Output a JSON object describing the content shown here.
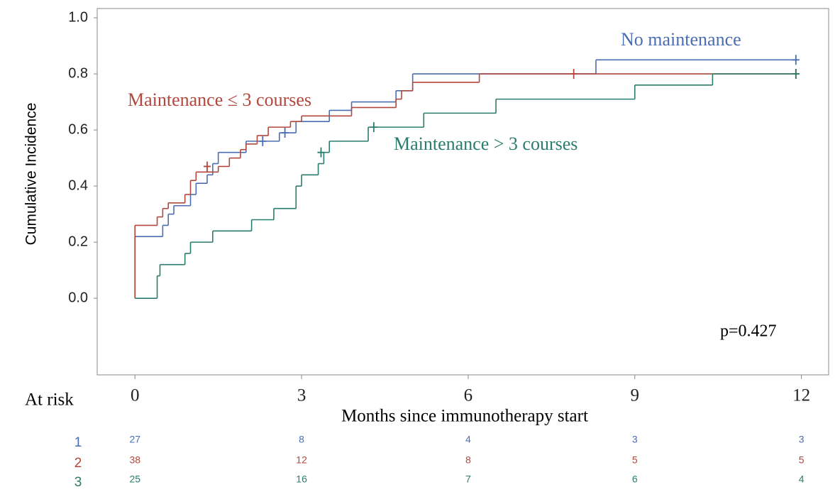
{
  "chart_data": {
    "type": "step",
    "y_label": "Cumulative Incidence",
    "x_label": "Months since immunotherapy start",
    "annotation": "p=0.427",
    "xlim": [
      -0.68,
      12.49
    ],
    "ylim": [
      -0.273,
      1.033
    ],
    "xticks": [
      0,
      3,
      6,
      9,
      12
    ],
    "yticks": [
      {
        "value": 0,
        "label": "0.0"
      },
      0.2,
      0.4,
      0.6,
      0.8,
      {
        "value": 1,
        "label": "1.0"
      }
    ],
    "series": [
      {
        "name": "No maintenance",
        "color": "#4a6db3",
        "x": [
          0,
          0,
          0.5,
          0.6,
          0.7,
          1.0,
          1.1,
          1.3,
          1.4,
          1.5,
          2.0,
          2.6,
          2.9,
          3.5,
          3.9,
          4.7,
          5.0,
          8.3,
          11.9
        ],
        "values": [
          0,
          0.22,
          0.26,
          0.3,
          0.33,
          0.37,
          0.41,
          0.44,
          0.48,
          0.52,
          0.56,
          0.59,
          0.63,
          0.67,
          0.7,
          0.74,
          0.8,
          0.85,
          0.85
        ],
        "censor_x": [
          2.3,
          2.7,
          11.9
        ],
        "censor_values": [
          0.56,
          0.59,
          0.85
        ]
      },
      {
        "name": "Maintenance ≤ 3 courses",
        "color": "#b3473b",
        "x": [
          0,
          0,
          0.4,
          0.5,
          0.6,
          0.9,
          1.0,
          1.1,
          1.5,
          1.7,
          1.9,
          2.0,
          2.2,
          2.4,
          2.8,
          3.0,
          3.9,
          4.7,
          4.8,
          5.0,
          6.2,
          11.9
        ],
        "values": [
          0,
          0.26,
          0.29,
          0.32,
          0.34,
          0.37,
          0.42,
          0.45,
          0.47,
          0.5,
          0.53,
          0.55,
          0.58,
          0.61,
          0.63,
          0.65,
          0.68,
          0.71,
          0.74,
          0.77,
          0.8,
          0.8
        ],
        "censor_x": [
          1.3,
          7.9,
          11.9
        ],
        "censor_values": [
          0.47,
          0.8,
          0.8
        ]
      },
      {
        "name": "Maintenance > 3 courses",
        "color": "#2a7d6c",
        "x": [
          0,
          0.4,
          0.45,
          0.9,
          1.0,
          1.4,
          2.1,
          2.5,
          2.9,
          3.0,
          3.3,
          3.4,
          3.5,
          4.2,
          5.2,
          6.5,
          9.0,
          10.4,
          11.9
        ],
        "values": [
          0,
          0.08,
          0.12,
          0.16,
          0.2,
          0.24,
          0.28,
          0.32,
          0.4,
          0.44,
          0.48,
          0.52,
          0.56,
          0.61,
          0.66,
          0.71,
          0.76,
          0.8,
          0.8
        ],
        "censor_x": [
          3.35,
          4.3,
          11.9
        ],
        "censor_values": [
          0.52,
          0.61,
          0.8
        ]
      }
    ],
    "risk_table": {
      "label": "At risk",
      "rows": [
        {
          "name": "1",
          "color": "#4a6db3",
          "values": [
            27,
            8,
            4,
            3,
            3
          ]
        },
        {
          "name": "2",
          "color": "#b3473b",
          "values": [
            38,
            12,
            8,
            5,
            5
          ]
        },
        {
          "name": "3",
          "color": "#2a7d6c",
          "values": [
            25,
            16,
            7,
            6,
            4
          ]
        }
      ]
    }
  }
}
